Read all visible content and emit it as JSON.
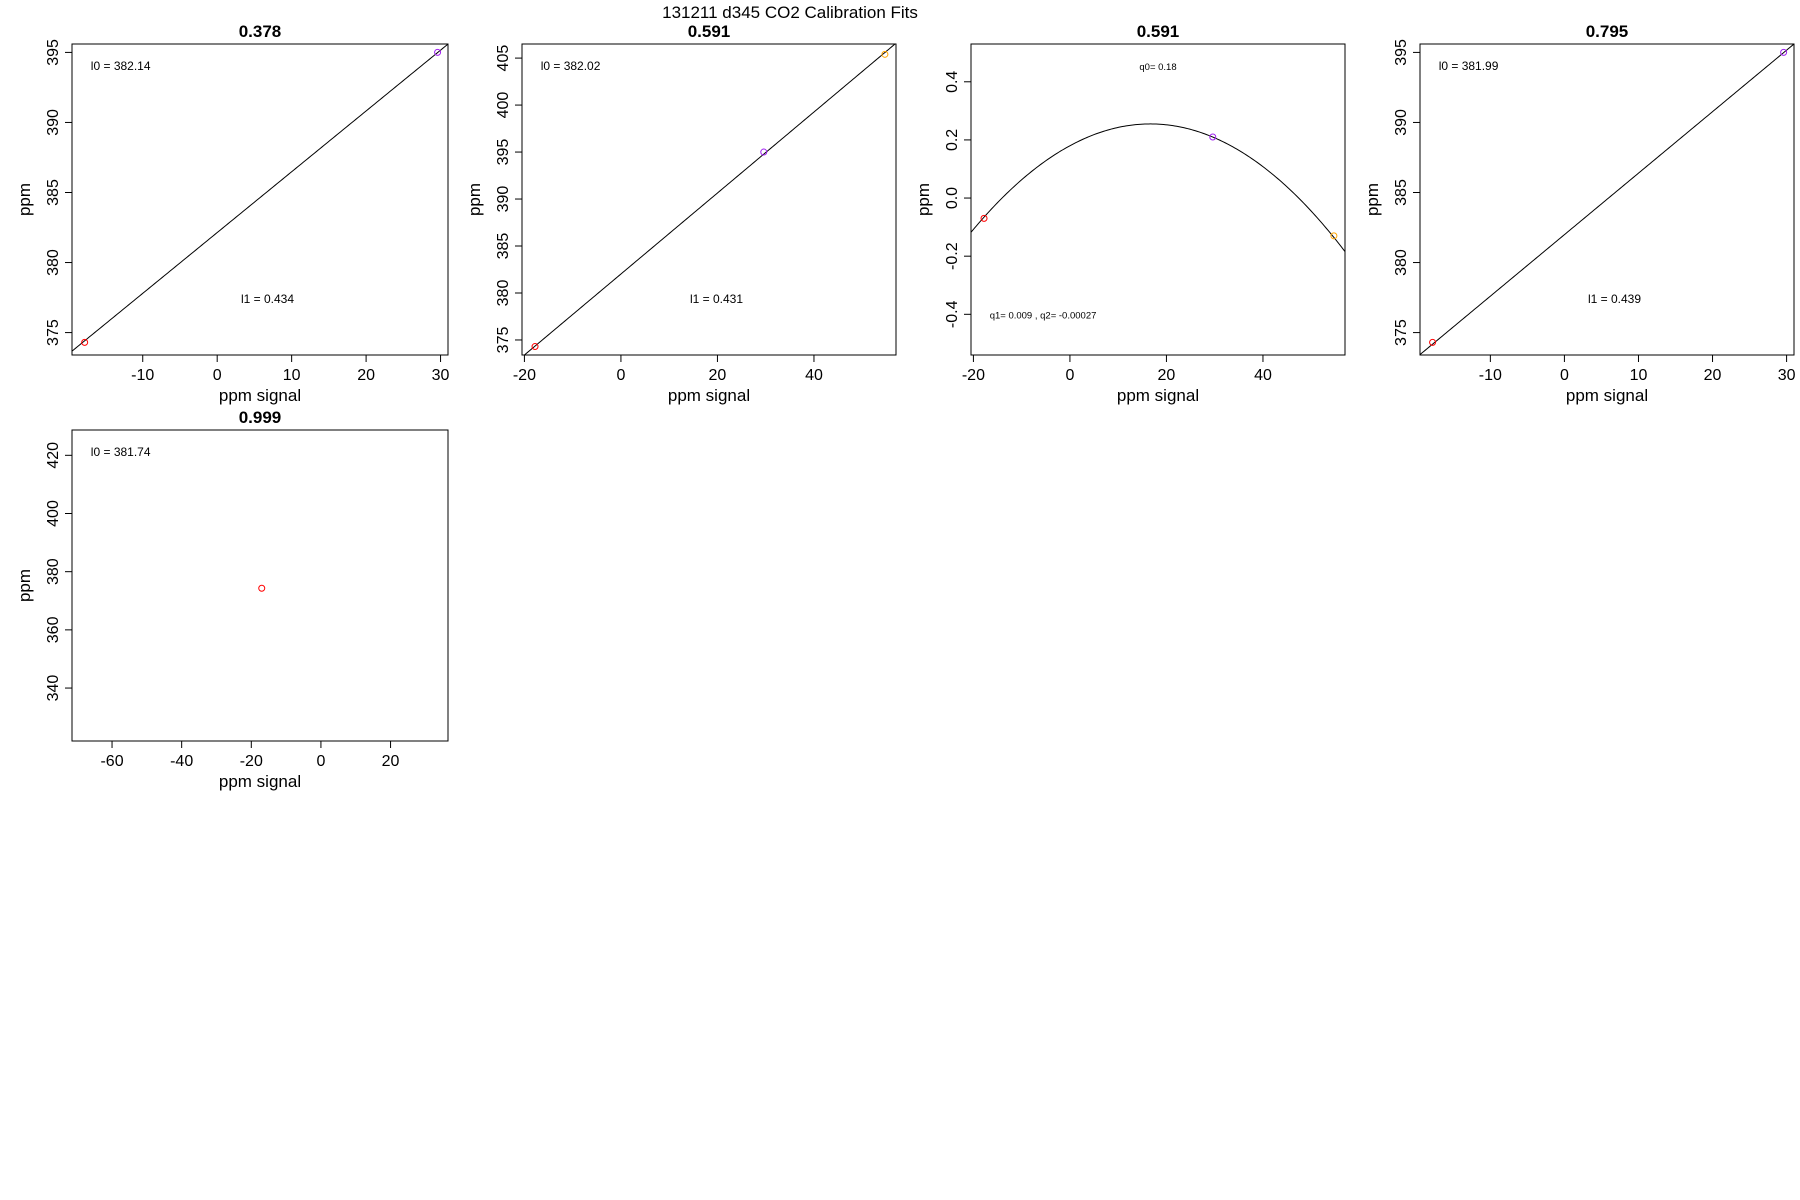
{
  "figure": {
    "title": "131211   d345   CO2 Calibration Fits"
  },
  "chart_data": [
    {
      "type": "scatter",
      "title": "0.378",
      "xlabel": "ppm signal",
      "ylabel": "ppm",
      "xlim": [
        -19.5,
        31
      ],
      "ylim": [
        373.4,
        395.6
      ],
      "x_ticks": [
        -10,
        0,
        10,
        20,
        30
      ],
      "y_ticks": [
        375,
        380,
        385,
        390,
        395
      ],
      "points": [
        {
          "x": -17.8,
          "y": 374.3,
          "color": "#ff0000"
        },
        {
          "x": 29.6,
          "y": 395.0,
          "color": "#a020f0"
        }
      ],
      "fit": {
        "kind": "linear",
        "coefficients": [
          382.14,
          0.434
        ]
      },
      "annotations": [
        "l0 =  382.14",
        "l1 =  0.434"
      ],
      "grid": false
    },
    {
      "type": "scatter",
      "title": "0.591",
      "xlabel": "ppm signal",
      "ylabel": "ppm",
      "xlim": [
        -20.5,
        57
      ],
      "ylim": [
        373.4,
        406.5
      ],
      "x_ticks": [
        -20,
        0,
        20,
        40
      ],
      "y_ticks": [
        375,
        380,
        385,
        390,
        395,
        400,
        405
      ],
      "points": [
        {
          "x": -17.8,
          "y": 374.3,
          "color": "#ff0000"
        },
        {
          "x": 29.6,
          "y": 395.0,
          "color": "#a020f0"
        },
        {
          "x": 54.7,
          "y": 405.4,
          "color": "#ffa500"
        }
      ],
      "fit": {
        "kind": "linear",
        "coefficients": [
          382.02,
          0.431
        ]
      },
      "annotations": [
        "l0 =  382.02",
        "l1 =  0.431"
      ],
      "grid": false
    },
    {
      "type": "scatter",
      "title": "0.591",
      "xlabel": "ppm signal",
      "ylabel": "ppm",
      "xlim": [
        -20.5,
        57
      ],
      "ylim": [
        -0.54,
        0.53
      ],
      "x_ticks": [
        -20,
        0,
        20,
        40
      ],
      "y_ticks": [
        -0.4,
        -0.2,
        0.0,
        0.2,
        0.4
      ],
      "y_tick_labels": [
        "-0.4",
        "-0.2",
        "0.0",
        "0.2",
        "0.4"
      ],
      "points": [
        {
          "x": -17.8,
          "y": -0.07,
          "color": "#ff0000"
        },
        {
          "x": 29.6,
          "y": 0.21,
          "color": "#a020f0"
        },
        {
          "x": 54.7,
          "y": -0.13,
          "color": "#ffa500"
        }
      ],
      "fit": {
        "kind": "quadratic",
        "coefficients": [
          0.18,
          0.009,
          -0.00027
        ]
      },
      "annotations": [
        "q0= 0.18",
        "q1= 0.009 , q2= -0.00027"
      ],
      "grid": false
    },
    {
      "type": "scatter",
      "title": "0.795",
      "xlabel": "ppm signal",
      "ylabel": "ppm",
      "xlim": [
        -19.5,
        31
      ],
      "ylim": [
        373.4,
        395.6
      ],
      "x_ticks": [
        -10,
        0,
        10,
        20,
        30
      ],
      "y_ticks": [
        375,
        380,
        385,
        390,
        395
      ],
      "points": [
        {
          "x": -17.8,
          "y": 374.3,
          "color": "#ff0000"
        },
        {
          "x": 29.6,
          "y": 395.0,
          "color": "#a020f0"
        }
      ],
      "fit": {
        "kind": "linear",
        "coefficients": [
          381.99,
          0.439
        ]
      },
      "annotations": [
        "l0 =  381.99",
        "l1 =  0.439"
      ],
      "grid": false
    },
    {
      "type": "scatter",
      "title": "0.999",
      "xlabel": "ppm signal",
      "ylabel": "ppm",
      "xlim": [
        -71.5,
        36.5
      ],
      "ylim": [
        321.8,
        428.7
      ],
      "x_ticks": [
        -60,
        -40,
        -20,
        0,
        20
      ],
      "y_ticks": [
        340,
        360,
        380,
        400,
        420
      ],
      "points": [
        {
          "x": -17.0,
          "y": 374.3,
          "color": "#ff0000"
        }
      ],
      "fit": null,
      "annotations": [
        "l0 =  381.74"
      ],
      "grid": false
    }
  ]
}
